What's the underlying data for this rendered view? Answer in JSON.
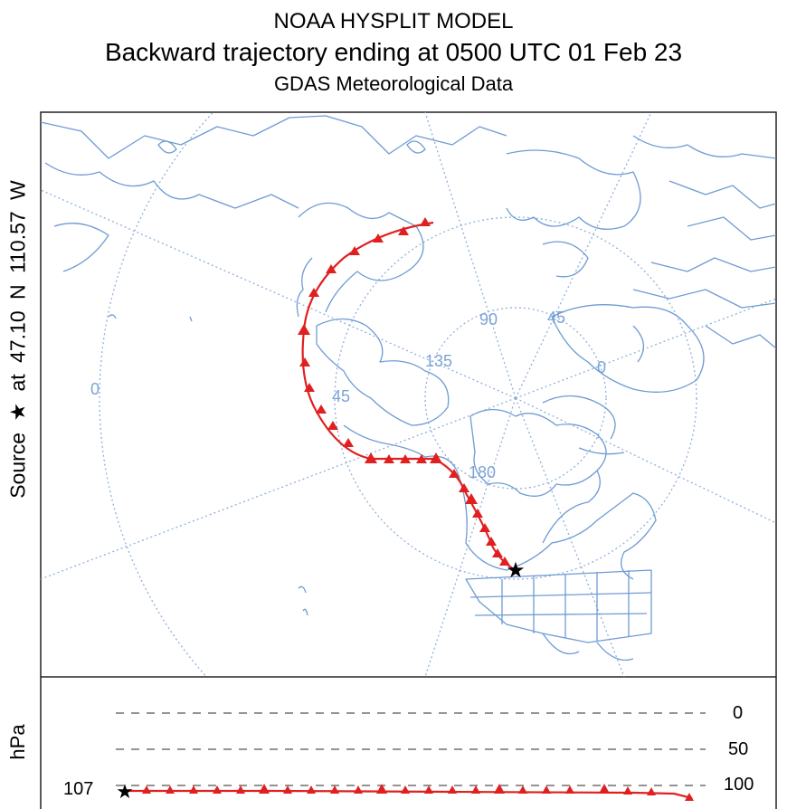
{
  "header": {
    "model": "NOAA HYSPLIT MODEL",
    "title": "Backward trajectory ending at 0500 UTC 01 Feb 23",
    "data_source": "GDAS Meteorological Data"
  },
  "source": {
    "label_prefix": "Source",
    "label_at": "at",
    "lat": "47.10 N",
    "lon": "110.57 W"
  },
  "map": {
    "graticule_labels": [
      "0",
      "45",
      "90",
      "45",
      "135",
      "0",
      "180"
    ],
    "trajectory_color": "#e02020",
    "land_outline_color": "#6f9bd4",
    "graticule_color": "#8fb0dd"
  },
  "vertical": {
    "axis_label": "hPa",
    "levels": [
      "0",
      "50",
      "100"
    ],
    "start_height": "107"
  }
}
